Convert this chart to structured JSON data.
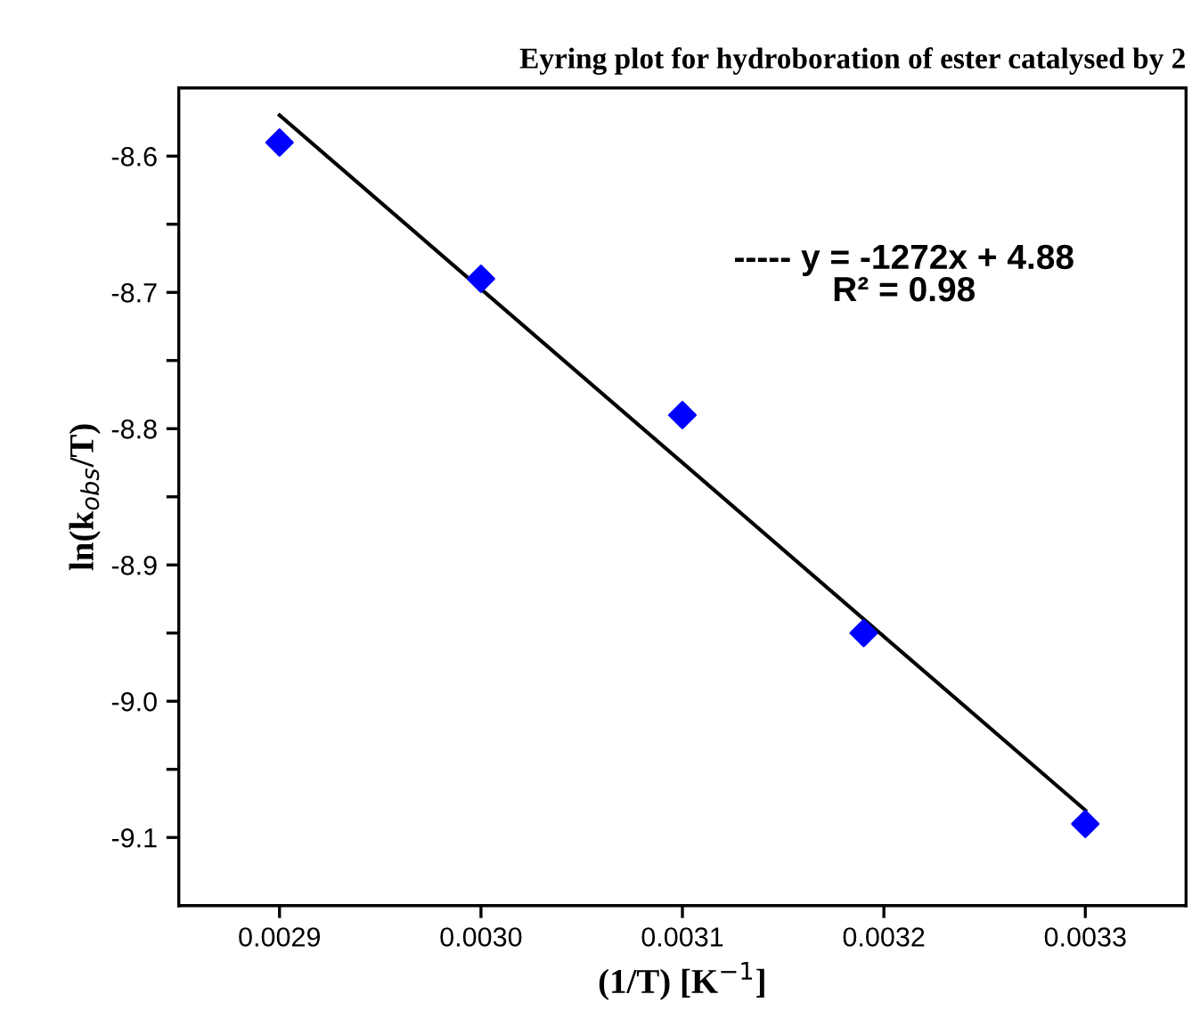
{
  "chart_data": {
    "type": "scatter",
    "title": "Eyring plot for hydroboration of ester catalysed by 2",
    "xlabel": "(1/T) [K$^{−1}$]",
    "ylabel": "ln(k$_{obs}$/T)",
    "x": [
      0.0029,
      0.003,
      0.0031,
      0.00319,
      0.0033
    ],
    "series": [
      {
        "color": "#0000ff",
        "marker": "diamond",
        "values": [
          -8.59,
          -8.69,
          -8.79,
          -8.95,
          -9.09
        ]
      },
      {
        "type": "line",
        "color": "#000000",
        "marker": "none",
        "line_style": "solid",
        "x": [
          0.0029,
          0.0033
        ],
        "values": [
          -8.57,
          -9.08
        ]
      }
    ],
    "annotations": [
      "----- y = -1272x + 4.88\nR² = 0.98"
    ],
    "xlim": [
      0.00285,
      0.00335
    ],
    "xticks": [
      {
        "value": 0.0029,
        "label": "0.0029"
      },
      {
        "value": 0.003,
        "label": "0.0030"
      },
      {
        "value": 0.0031,
        "label": "0.0031"
      },
      {
        "value": 0.0032,
        "label": "0.0032"
      },
      {
        "value": 0.0033,
        "label": "0.0033"
      }
    ],
    "ylim": [
      -9.15,
      -8.55
    ],
    "yticks": [
      {
        "value": -8.6,
        "label": "-8.6"
      },
      {
        "value": -8.65,
        "label": null
      },
      {
        "value": -8.7,
        "label": "-8.7"
      },
      {
        "value": -8.75,
        "label": null
      },
      {
        "value": -8.8,
        "label": "-8.8"
      },
      {
        "value": -8.85,
        "label": null
      },
      {
        "value": -8.9,
        "label": "-8.9"
      },
      {
        "value": -8.95,
        "label": null
      },
      {
        "value": -9.0,
        "label": "-9.0"
      },
      {
        "value": -9.05,
        "label": null
      },
      {
        "value": -9.1,
        "label": "-9.1"
      }
    ],
    "grid": false,
    "legend": false
  }
}
